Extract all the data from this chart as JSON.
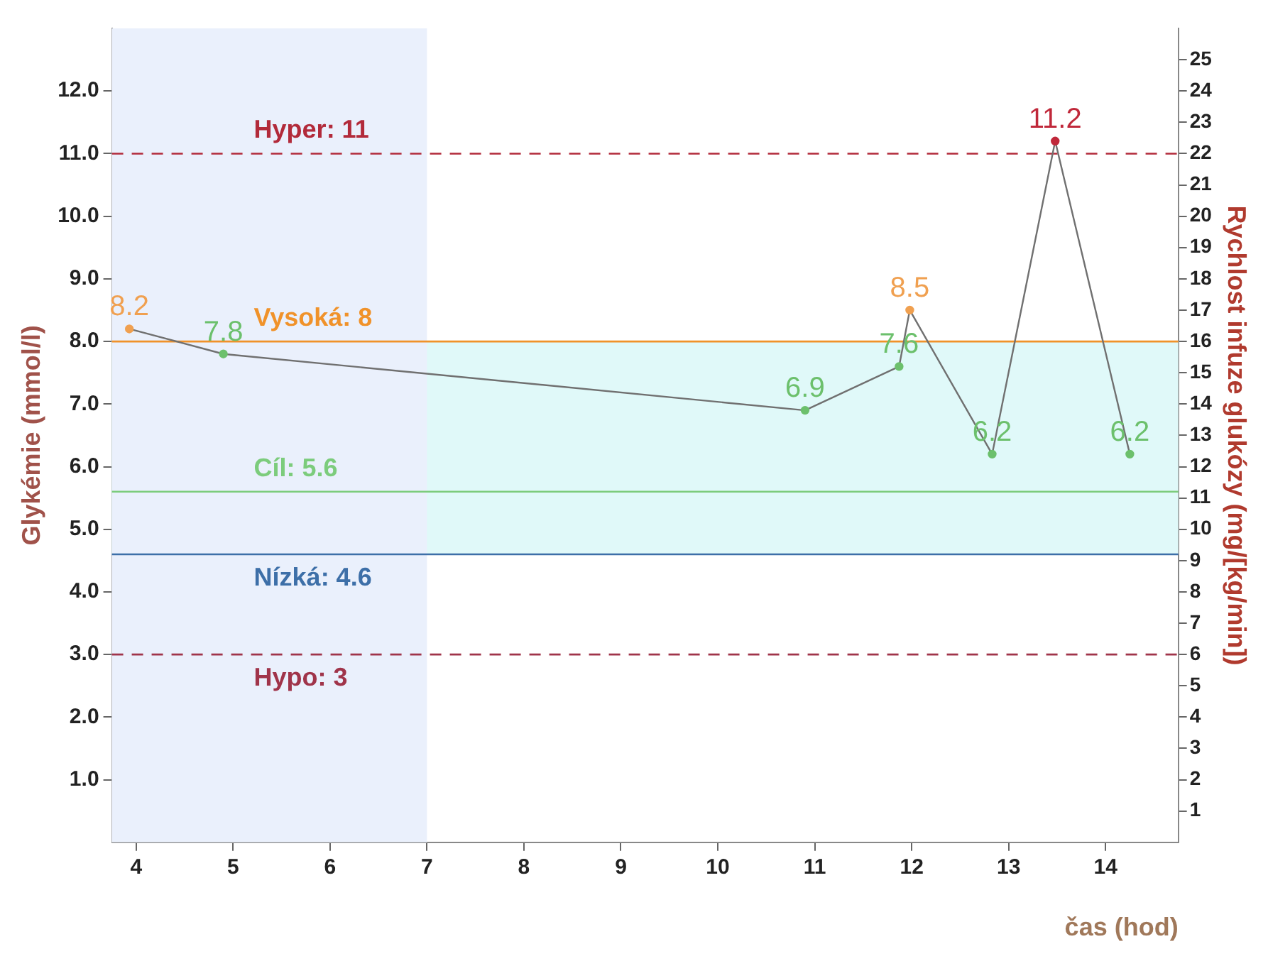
{
  "chart_data": {
    "type": "line",
    "xlabel": "čas (hod)",
    "ylabel": "Glykémie (mmol/l)",
    "y2label": "Rychlost infuze glukózy (mg/[kg/min])",
    "x": [
      3.93,
      4.9,
      10.9,
      11.87,
      11.98,
      12.83,
      13.48,
      14.25
    ],
    "series": [
      {
        "color": "#707070",
        "values": [
          8.2,
          7.8,
          6.9,
          7.6,
          8.5,
          6.2,
          11.2,
          6.2
        ],
        "colors": [
          "#f0a050",
          "#6cc06c",
          "#6cc06c",
          "#6cc06c",
          "#f0a050",
          "#6cc06c",
          "#c0283a",
          "#6cc06c"
        ]
      }
    ],
    "xlim": [
      3.75,
      14.75
    ],
    "xticks": [
      4,
      5,
      6,
      7,
      8,
      9,
      10,
      11,
      12,
      13,
      14
    ],
    "ylim": [
      0,
      13
    ],
    "yticks": [
      {
        "value": 1,
        "label": "1.0"
      },
      {
        "value": 2,
        "label": "2.0"
      },
      {
        "value": 3,
        "label": "3.0"
      },
      {
        "value": 4,
        "label": "4.0"
      },
      {
        "value": 5,
        "label": "5.0"
      },
      {
        "value": 6,
        "label": "6.0"
      },
      {
        "value": 7,
        "label": "7.0"
      },
      {
        "value": 8,
        "label": "8.0"
      },
      {
        "value": 9,
        "label": "9.0"
      },
      {
        "value": 10,
        "label": "10.0"
      },
      {
        "value": 11,
        "label": "11.0"
      },
      {
        "value": 12,
        "label": "12.0"
      }
    ],
    "y2lim": [
      0,
      26
    ],
    "y2ticks": [
      1,
      2,
      3,
      4,
      5,
      6,
      7,
      8,
      9,
      10,
      11,
      12,
      13,
      14,
      15,
      16,
      17,
      18,
      19,
      20,
      21,
      22,
      23,
      24,
      25
    ],
    "ref_lines": [
      {
        "axis": "y",
        "value": 11,
        "label": "Hyper: 11",
        "color": "#b22a3a",
        "line_style": "dashed"
      },
      {
        "axis": "y",
        "value": 8,
        "label": "Vysoká: 8",
        "color": "#f0922a",
        "line_style": "solid"
      },
      {
        "axis": "y",
        "value": 5.6,
        "label": "Cíl: 5.6",
        "color": "#7ccc7c",
        "line_style": "solid"
      },
      {
        "axis": "y",
        "value": 4.6,
        "label": "Nízká: 4.6",
        "color": "#3d6fa8",
        "line_style": "solid"
      },
      {
        "axis": "y",
        "value": 3,
        "label": "Hypo: 3",
        "color": "#a0344a",
        "line_style": "dashed"
      }
    ],
    "bands": [
      {
        "axis": "y",
        "from": 4.6,
        "to": 8,
        "color": "#e0f9f9"
      },
      {
        "axis": "x",
        "from": 3.75,
        "to": 7,
        "color": "#eaf0fc"
      }
    ],
    "data_labels": true,
    "grid": false,
    "legend": false,
    "marker": "circle",
    "line_style": "solid"
  }
}
